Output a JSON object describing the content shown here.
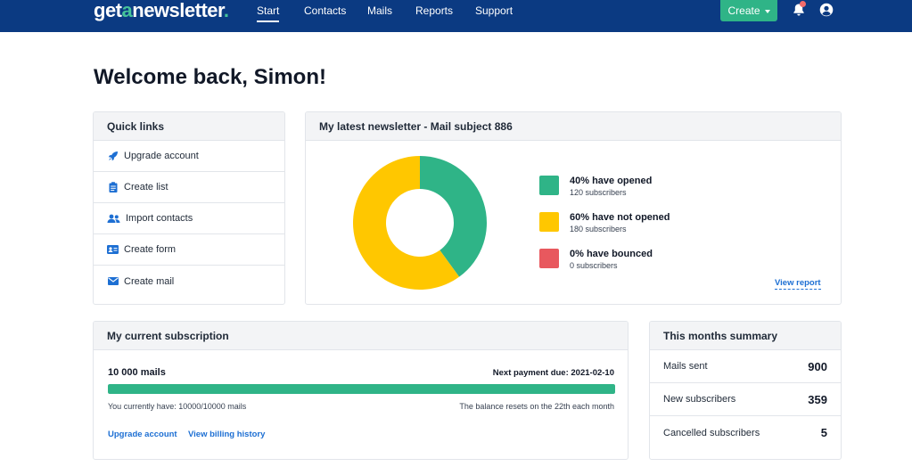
{
  "brand": {
    "logo_prefix": "get",
    "logo_accent": "a",
    "logo_suffix": "newsletter",
    "logo_dot": ".",
    "primary_color": "#0b3a82",
    "accent_color": "#2fb487"
  },
  "nav": {
    "items": [
      {
        "label": "Start",
        "active": true
      },
      {
        "label": "Contacts"
      },
      {
        "label": "Mails"
      },
      {
        "label": "Reports"
      },
      {
        "label": "Support"
      }
    ],
    "create_label": "Create",
    "notification_icon": "bell-icon",
    "user_icon": "user-circle-icon"
  },
  "welcome": "Welcome back, Simon!",
  "quick_links": {
    "title": "Quick links",
    "items": [
      {
        "label": "Upgrade account",
        "icon": "rocket-icon"
      },
      {
        "label": "Create list",
        "icon": "clipboard-icon"
      },
      {
        "label": "Import contacts",
        "icon": "users-icon"
      },
      {
        "label": "Create form",
        "icon": "id-card-icon"
      },
      {
        "label": "Create mail",
        "icon": "envelope-icon"
      }
    ]
  },
  "newsletter": {
    "title": "My latest newsletter - Mail subject 886",
    "legend": [
      {
        "title": "40% have opened",
        "sub": "120 subscribers",
        "color": "#2fb487"
      },
      {
        "title": "60% have not opened",
        "sub": "180 subscribers",
        "color": "#ffc700"
      },
      {
        "title": "0% have bounced",
        "sub": "0 subscribers",
        "color": "#e8585e"
      }
    ],
    "view_report": "View report"
  },
  "chart_data": {
    "type": "pie",
    "categories": [
      "have opened",
      "have not opened",
      "have bounced"
    ],
    "values": [
      40,
      60,
      0
    ],
    "colors": [
      "#2fb487",
      "#ffc700",
      "#e8585e"
    ]
  },
  "subscription": {
    "title": "My current subscription",
    "plan": "10 000 mails",
    "next_payment": "Next payment due: 2021-02-10",
    "usage_fraction": 1.0,
    "have_text": "You currently have: 10000/10000 mails",
    "reset_text": "The balance resets on the 22th each month",
    "upgrade_link": "Upgrade account",
    "billing_link": "View billing history"
  },
  "summary": {
    "title": "This months summary",
    "rows": [
      {
        "label": "Mails sent",
        "value": "900"
      },
      {
        "label": "New subscribers",
        "value": "359"
      },
      {
        "label": "Cancelled subscribers",
        "value": "5"
      }
    ]
  }
}
